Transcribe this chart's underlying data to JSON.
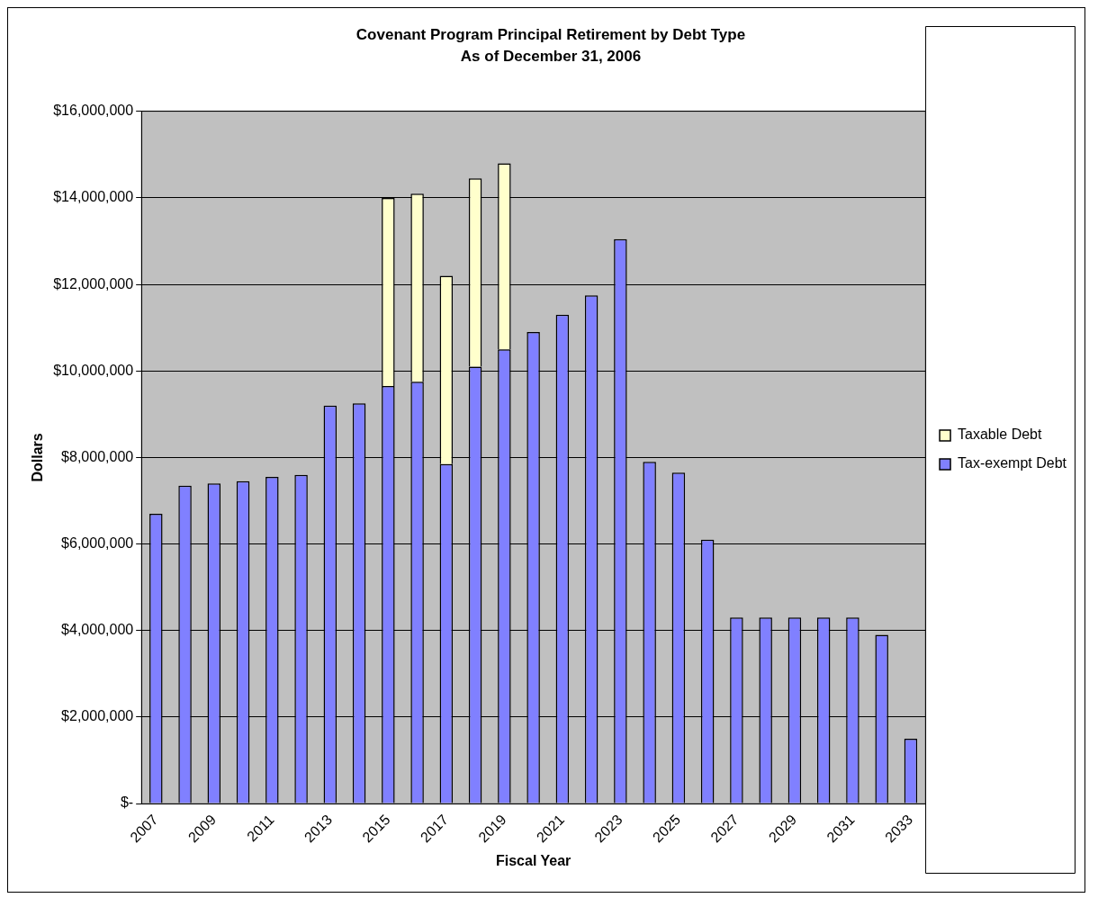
{
  "chart_data": {
    "type": "bar",
    "title": "Covenant Program Principal Retirement by Debt Type",
    "subtitle": "As of December 31, 2006",
    "xlabel": "Fiscal Year",
    "ylabel": "Dollars",
    "categories": [
      "2007",
      null,
      "2009",
      null,
      "2011",
      null,
      "2013",
      null,
      "2015",
      null,
      "2017",
      null,
      "2019",
      null,
      "2021",
      null,
      "2023",
      null,
      "2025",
      null,
      "2027",
      null,
      "2029",
      null,
      "2031",
      null,
      "2033"
    ],
    "stacked": true,
    "series": [
      {
        "name": "Tax-exempt Debt",
        "color": "#8080ff",
        "values": [
          6700000,
          7350000,
          7400000,
          7450000,
          7550000,
          7600000,
          9200000,
          9250000,
          9650000,
          9750000,
          7850000,
          10100000,
          10500000,
          10900000,
          11300000,
          11750000,
          13050000,
          7900000,
          7650000,
          6100000,
          4300000,
          4300000,
          4300000,
          4300000,
          4300000,
          3900000,
          1500000
        ]
      },
      {
        "name": "Taxable Debt",
        "color": "#ffffcc",
        "values": [
          null,
          null,
          null,
          null,
          null,
          null,
          null,
          null,
          4350000,
          4350000,
          4350000,
          4350000,
          4300000,
          null,
          null,
          null,
          null,
          null,
          null,
          null,
          null,
          null,
          null,
          null,
          null,
          null,
          null
        ]
      }
    ],
    "ylim": [
      0,
      16000000
    ],
    "yticks": [
      {
        "value": 0,
        "label": "$-"
      },
      {
        "value": 2000000,
        "label": "$2,000,000"
      },
      {
        "value": 4000000,
        "label": "$4,000,000"
      },
      {
        "value": 6000000,
        "label": "$6,000,000"
      },
      {
        "value": 8000000,
        "label": "$8,000,000"
      },
      {
        "value": 10000000,
        "label": "$10,000,000"
      },
      {
        "value": 12000000,
        "label": "$12,000,000"
      },
      {
        "value": 14000000,
        "label": "$14,000,000"
      },
      {
        "value": 16000000,
        "label": "$16,000,000"
      }
    ],
    "grid": "y",
    "legend": "right"
  }
}
